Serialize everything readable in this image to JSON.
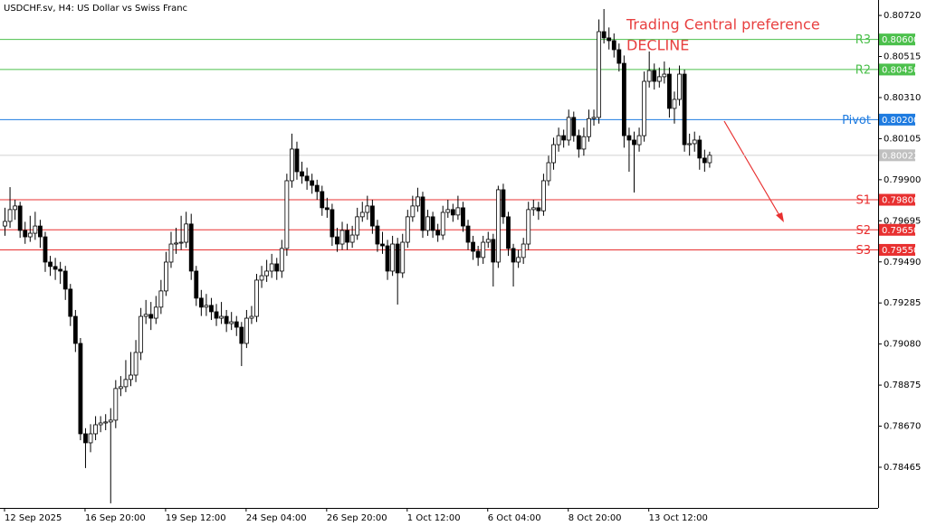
{
  "chart_data": {
    "type": "candlestick",
    "title": "USDCHF.sv, H4:  US Dollar vs Swiss Franc",
    "annotation": [
      "Trading Central preference",
      "DECLINE"
    ],
    "up_color": "#ffffff",
    "down_color": "#000000",
    "categories": [
      "12 Sep 2025",
      null,
      null,
      null,
      null,
      null,
      null,
      null,
      null,
      null,
      null,
      null,
      null,
      null,
      null,
      null,
      "16 Sep 20:00",
      null,
      null,
      null,
      null,
      null,
      null,
      null,
      null,
      null,
      null,
      null,
      null,
      null,
      null,
      null,
      "19 Sep 12:00",
      null,
      null,
      null,
      null,
      null,
      null,
      null,
      null,
      null,
      null,
      null,
      null,
      null,
      null,
      null,
      "24 Sep 04:00",
      null,
      null,
      null,
      null,
      null,
      null,
      null,
      null,
      null,
      null,
      null,
      null,
      null,
      null,
      null,
      "26 Sep 20:00",
      null,
      null,
      null,
      null,
      null,
      null,
      null,
      null,
      null,
      null,
      null,
      null,
      null,
      null,
      null,
      "1 Oct 12:00",
      null,
      null,
      null,
      null,
      null,
      null,
      null,
      null,
      null,
      null,
      null,
      null,
      null,
      null,
      null,
      "6 Oct 04:00",
      null,
      null,
      null,
      null,
      null,
      null,
      null,
      null,
      null,
      null,
      null,
      null,
      null,
      null,
      null,
      "8 Oct 20:00",
      null,
      null,
      null,
      null,
      null,
      null,
      null,
      null,
      null,
      null,
      null,
      null,
      null,
      null,
      null,
      "13 Oct 12:00",
      null,
      null,
      null,
      null,
      null,
      null,
      null,
      null,
      null,
      null,
      null,
      null
    ],
    "candles": [
      [
        0.79669,
        0.7976,
        0.7962,
        0.79692
      ],
      [
        0.79692,
        0.79863,
        0.7966,
        0.79751
      ],
      [
        0.79751,
        0.798,
        0.797,
        0.79769
      ],
      [
        0.79769,
        0.7979,
        0.7961,
        0.79647
      ],
      [
        0.79647,
        0.7969,
        0.7958,
        0.79615
      ],
      [
        0.79615,
        0.7972,
        0.7959,
        0.79633
      ],
      [
        0.79633,
        0.7974,
        0.796,
        0.79669
      ],
      [
        0.79669,
        0.797,
        0.7956,
        0.79615
      ],
      [
        0.79615,
        0.7964,
        0.7944,
        0.79489
      ],
      [
        0.79489,
        0.7952,
        0.7942,
        0.79467
      ],
      [
        0.79467,
        0.7951,
        0.794,
        0.79453
      ],
      [
        0.79453,
        0.7949,
        0.7938,
        0.79444
      ],
      [
        0.79444,
        0.7947,
        0.793,
        0.79354
      ],
      [
        0.79354,
        0.7938,
        0.7917,
        0.79218
      ],
      [
        0.79218,
        0.7925,
        0.7904,
        0.79083
      ],
      [
        0.79083,
        0.7911,
        0.786,
        0.78632
      ],
      [
        0.78632,
        0.7866,
        0.78461,
        0.78587
      ],
      [
        0.78587,
        0.7868,
        0.7854,
        0.78632
      ],
      [
        0.78632,
        0.7872,
        0.786,
        0.78677
      ],
      [
        0.78677,
        0.7872,
        0.7864,
        0.78686
      ],
      [
        0.78686,
        0.7873,
        0.7865,
        0.78691
      ],
      [
        0.78691,
        0.7876,
        0.78285,
        0.787
      ],
      [
        0.787,
        0.789,
        0.7866,
        0.78858
      ],
      [
        0.78858,
        0.7892,
        0.7882,
        0.78867
      ],
      [
        0.78867,
        0.79,
        0.7884,
        0.78903
      ],
      [
        0.78903,
        0.7904,
        0.7887,
        0.78925
      ],
      [
        0.78925,
        0.791,
        0.7889,
        0.79038
      ],
      [
        0.79038,
        0.7926,
        0.79,
        0.79218
      ],
      [
        0.79218,
        0.793,
        0.7918,
        0.79228
      ],
      [
        0.79228,
        0.7929,
        0.7915,
        0.79209
      ],
      [
        0.79209,
        0.7932,
        0.7918,
        0.79264
      ],
      [
        0.79264,
        0.794,
        0.7923,
        0.79345
      ],
      [
        0.79345,
        0.7954,
        0.7932,
        0.79489
      ],
      [
        0.79489,
        0.7964,
        0.7946,
        0.79579
      ],
      [
        0.79579,
        0.7966,
        0.7953,
        0.79584
      ],
      [
        0.79584,
        0.7972,
        0.7955,
        0.79588
      ],
      [
        0.79588,
        0.7974,
        0.7956,
        0.79679
      ],
      [
        0.79679,
        0.7973,
        0.794,
        0.79444
      ],
      [
        0.79444,
        0.7947,
        0.7927,
        0.79309
      ],
      [
        0.79309,
        0.7935,
        0.7922,
        0.79264
      ],
      [
        0.79264,
        0.7933,
        0.7922,
        0.79273
      ],
      [
        0.79273,
        0.7931,
        0.792,
        0.79241
      ],
      [
        0.79241,
        0.7928,
        0.7917,
        0.79209
      ],
      [
        0.79209,
        0.7929,
        0.7918,
        0.79218
      ],
      [
        0.79218,
        0.7925,
        0.7914,
        0.79182
      ],
      [
        0.79182,
        0.7924,
        0.7915,
        0.79191
      ],
      [
        0.79191,
        0.7922,
        0.7912,
        0.79164
      ],
      [
        0.79164,
        0.7919,
        0.7897,
        0.79083
      ],
      [
        0.79083,
        0.7925,
        0.7906,
        0.79209
      ],
      [
        0.79209,
        0.7927,
        0.7918,
        0.79218
      ],
      [
        0.79218,
        0.7943,
        0.7919,
        0.79399
      ],
      [
        0.79399,
        0.7947,
        0.7936,
        0.79421
      ],
      [
        0.79421,
        0.795,
        0.7939,
        0.79444
      ],
      [
        0.79444,
        0.7953,
        0.7941,
        0.7948
      ],
      [
        0.7948,
        0.7951,
        0.794,
        0.79444
      ],
      [
        0.79444,
        0.796,
        0.7941,
        0.79557
      ],
      [
        0.79557,
        0.7993,
        0.7952,
        0.79895
      ],
      [
        0.79895,
        0.8013,
        0.7986,
        0.80053
      ],
      [
        0.80053,
        0.8009,
        0.799,
        0.7994
      ],
      [
        0.7994,
        0.7999,
        0.7988,
        0.79918
      ],
      [
        0.79918,
        0.7996,
        0.7985,
        0.79895
      ],
      [
        0.79895,
        0.7993,
        0.7983,
        0.79872
      ],
      [
        0.79872,
        0.799,
        0.798,
        0.79841
      ],
      [
        0.79841,
        0.7987,
        0.7972,
        0.7976
      ],
      [
        0.7976,
        0.7981,
        0.7971,
        0.79751
      ],
      [
        0.79751,
        0.7978,
        0.7957,
        0.79615
      ],
      [
        0.79615,
        0.7966,
        0.7954,
        0.79579
      ],
      [
        0.79579,
        0.7969,
        0.7955,
        0.79647
      ],
      [
        0.79647,
        0.7968,
        0.7955,
        0.79588
      ],
      [
        0.79588,
        0.7967,
        0.7956,
        0.79624
      ],
      [
        0.79624,
        0.7976,
        0.796,
        0.79715
      ],
      [
        0.79715,
        0.7979,
        0.7969,
        0.79737
      ],
      [
        0.79737,
        0.7982,
        0.797,
        0.79769
      ],
      [
        0.79769,
        0.798,
        0.7963,
        0.79669
      ],
      [
        0.79669,
        0.797,
        0.7954,
        0.79579
      ],
      [
        0.79579,
        0.7964,
        0.7953,
        0.7957
      ],
      [
        0.7957,
        0.796,
        0.794,
        0.79444
      ],
      [
        0.79444,
        0.7962,
        0.7942,
        0.79579
      ],
      [
        0.79579,
        0.7961,
        0.79277,
        0.79435
      ],
      [
        0.79435,
        0.7963,
        0.7941,
        0.79588
      ],
      [
        0.79588,
        0.7975,
        0.7956,
        0.79715
      ],
      [
        0.79715,
        0.7982,
        0.7969,
        0.79769
      ],
      [
        0.79769,
        0.7986,
        0.7974,
        0.79814
      ],
      [
        0.79814,
        0.7984,
        0.7961,
        0.79647
      ],
      [
        0.79647,
        0.7975,
        0.7962,
        0.79715
      ],
      [
        0.79715,
        0.7974,
        0.7961,
        0.79647
      ],
      [
        0.79647,
        0.7968,
        0.7959,
        0.79624
      ],
      [
        0.79624,
        0.7977,
        0.796,
        0.79737
      ],
      [
        0.79737,
        0.798,
        0.7971,
        0.79751
      ],
      [
        0.79751,
        0.7978,
        0.7969,
        0.79724
      ],
      [
        0.79724,
        0.7982,
        0.797,
        0.7976
      ],
      [
        0.7976,
        0.7979,
        0.7964,
        0.79669
      ],
      [
        0.79669,
        0.797,
        0.7955,
        0.79588
      ],
      [
        0.79588,
        0.7962,
        0.795,
        0.79543
      ],
      [
        0.79543,
        0.7957,
        0.7947,
        0.79512
      ],
      [
        0.79512,
        0.7962,
        0.7948,
        0.79588
      ],
      [
        0.79588,
        0.7964,
        0.7956,
        0.79602
      ],
      [
        0.79602,
        0.7963,
        0.79367,
        0.79489
      ],
      [
        0.79489,
        0.7987,
        0.7946,
        0.7985
      ],
      [
        0.7985,
        0.7988,
        0.7968,
        0.79715
      ],
      [
        0.79715,
        0.7974,
        0.7952,
        0.79557
      ],
      [
        0.79557,
        0.7958,
        0.79367,
        0.79489
      ],
      [
        0.79489,
        0.7955,
        0.7946,
        0.79512
      ],
      [
        0.79512,
        0.7961,
        0.7948,
        0.79579
      ],
      [
        0.79579,
        0.7979,
        0.7955,
        0.79751
      ],
      [
        0.79751,
        0.798,
        0.7972,
        0.7976
      ],
      [
        0.7976,
        0.7979,
        0.797,
        0.79745
      ],
      [
        0.79745,
        0.7993,
        0.7972,
        0.79895
      ],
      [
        0.79895,
        0.8002,
        0.7987,
        0.79985
      ],
      [
        0.79985,
        0.8011,
        0.7995,
        0.80075
      ],
      [
        0.80075,
        0.8016,
        0.8004,
        0.8012
      ],
      [
        0.8012,
        0.8015,
        0.8006,
        0.80098
      ],
      [
        0.80098,
        0.8025,
        0.8007,
        0.80211
      ],
      [
        0.80211,
        0.8024,
        0.8009,
        0.8012
      ],
      [
        0.8012,
        0.8015,
        0.8001,
        0.80053
      ],
      [
        0.80053,
        0.8016,
        0.8002,
        0.80115
      ],
      [
        0.80115,
        0.8025,
        0.8009,
        0.80205
      ],
      [
        0.80205,
        0.8025,
        0.8017,
        0.80211
      ],
      [
        0.80211,
        0.807,
        0.8018,
        0.80639
      ],
      [
        0.80639,
        0.80752,
        0.8058,
        0.80608
      ],
      [
        0.80608,
        0.8066,
        0.8055,
        0.80594
      ],
      [
        0.80594,
        0.8063,
        0.8051,
        0.80549
      ],
      [
        0.80549,
        0.8058,
        0.8044,
        0.80481
      ],
      [
        0.80481,
        0.8052,
        0.8006,
        0.8012
      ],
      [
        0.8012,
        0.8016,
        0.7994,
        0.80098
      ],
      [
        0.80098,
        0.8014,
        0.79836,
        0.80075
      ],
      [
        0.80075,
        0.8016,
        0.8004,
        0.8012
      ],
      [
        0.8012,
        0.8044,
        0.8009,
        0.80391
      ],
      [
        0.80391,
        0.8054,
        0.8036,
        0.80445
      ],
      [
        0.80445,
        0.8048,
        0.8035,
        0.80391
      ],
      [
        0.80391,
        0.8046,
        0.8036,
        0.80414
      ],
      [
        0.80414,
        0.8049,
        0.8038,
        0.80427
      ],
      [
        0.80427,
        0.8046,
        0.8021,
        0.80256
      ],
      [
        0.80256,
        0.8034,
        0.8018,
        0.80301
      ],
      [
        0.80301,
        0.8047,
        0.8027,
        0.80427
      ],
      [
        0.80427,
        0.8045,
        0.8004,
        0.80075
      ],
      [
        0.80075,
        0.8013,
        0.8002,
        0.8008
      ],
      [
        0.8008,
        0.8014,
        0.8004,
        0.80098
      ],
      [
        0.80098,
        0.8012,
        0.7995,
        0.80008
      ],
      [
        0.80008,
        0.8005,
        0.7994,
        0.79985
      ],
      [
        0.79985,
        0.8004,
        0.7996,
        0.80022
      ]
    ],
    "ylim": [
      0.78262,
      0.80797
    ],
    "yticks": [
      {
        "value": 0.8072,
        "label": "0.80720"
      },
      {
        "value": 0.80515,
        "label": "0.80515"
      },
      {
        "value": 0.8031,
        "label": "0.80310"
      },
      {
        "value": 0.80105,
        "label": "0.80105"
      },
      {
        "value": 0.799,
        "label": "0.79900"
      },
      {
        "value": 0.79695,
        "label": "0.79695"
      },
      {
        "value": 0.7949,
        "label": "0.79490"
      },
      {
        "value": 0.79285,
        "label": "0.79285"
      },
      {
        "value": 0.7908,
        "label": "0.79080"
      },
      {
        "value": 0.78875,
        "label": "0.78875"
      },
      {
        "value": 0.7867,
        "label": "0.78670"
      },
      {
        "value": 0.78465,
        "label": "0.78465"
      }
    ],
    "levels": [
      {
        "name": "R3",
        "value": 0.806,
        "label": "0.80600",
        "color": "#4cc04c"
      },
      {
        "name": "R2",
        "value": 0.8045,
        "label": "0.80450",
        "color": "#4cc04c"
      },
      {
        "name": "Pivot",
        "value": 0.802,
        "label": "0.80200",
        "color": "#1e7be0"
      },
      {
        "name": "S1",
        "value": 0.798,
        "label": "0.79800",
        "color": "#e83030"
      },
      {
        "name": "S2",
        "value": 0.7965,
        "label": "0.79650",
        "color": "#e83030"
      },
      {
        "name": "S3",
        "value": 0.7955,
        "label": "0.79550",
        "color": "#e83030"
      }
    ],
    "last_price": {
      "value": 0.80022,
      "label": "0.80022",
      "color": "#c0c0c0"
    }
  }
}
